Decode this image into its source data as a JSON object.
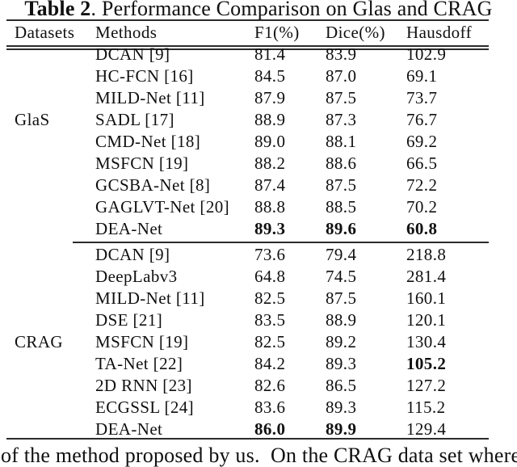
{
  "page": {
    "caption_bold": "Table 2",
    "caption_rest": ". Performance Comparison on Glas and CRAG",
    "footer_text": "of the method proposed by us.  On the CRAG data set where"
  },
  "table": {
    "columns": [
      "Datasets",
      "Methods",
      "F1(%)",
      "Dice(%)",
      "Hausdoff"
    ],
    "sections": [
      {
        "dataset": "GlaS",
        "dataset_row": 3,
        "rows": [
          {
            "method": "DCAN [9]",
            "f1": "81.4",
            "dice": "83.9",
            "hausdoff": "102.9",
            "bold": []
          },
          {
            "method": "HC-FCN [16]",
            "f1": "84.5",
            "dice": "87.0",
            "hausdoff": "69.1",
            "bold": []
          },
          {
            "method": "MILD-Net [11]",
            "f1": "87.9",
            "dice": "87.5",
            "hausdoff": "73.7",
            "bold": []
          },
          {
            "method": "SADL [17]",
            "f1": "88.9",
            "dice": "87.3",
            "hausdoff": "76.7",
            "bold": []
          },
          {
            "method": "CMD-Net [18]",
            "f1": "89.0",
            "dice": "88.1",
            "hausdoff": "69.2",
            "bold": []
          },
          {
            "method": "MSFCN [19]",
            "f1": "88.2",
            "dice": "88.6",
            "hausdoff": "66.5",
            "bold": []
          },
          {
            "method": "GCSBA-Net [8]",
            "f1": "87.4",
            "dice": "87.5",
            "hausdoff": "72.2",
            "bold": []
          },
          {
            "method": "GAGLVT-Net [20]",
            "f1": "88.8",
            "dice": "88.5",
            "hausdoff": "70.2",
            "bold": []
          },
          {
            "method": "DEA-Net",
            "f1": "89.3",
            "dice": "89.6",
            "hausdoff": "60.8",
            "bold": [
              "f1",
              "dice",
              "hausdoff"
            ]
          }
        ]
      },
      {
        "dataset": "CRAG",
        "dataset_row": 4,
        "rows": [
          {
            "method": "DCAN [9]",
            "f1": "73.6",
            "dice": "79.4",
            "hausdoff": "218.8",
            "bold": []
          },
          {
            "method": "DeepLabv3",
            "f1": "64.8",
            "dice": "74.5",
            "hausdoff": "281.4",
            "bold": []
          },
          {
            "method": "MILD-Net [11]",
            "f1": "82.5",
            "dice": "87.5",
            "hausdoff": "160.1",
            "bold": []
          },
          {
            "method": "DSE [21]",
            "f1": "83.5",
            "dice": "88.9",
            "hausdoff": "120.1",
            "bold": []
          },
          {
            "method": "MSFCN [19]",
            "f1": "82.5",
            "dice": "89.2",
            "hausdoff": "130.4",
            "bold": []
          },
          {
            "method": "TA-Net [22]",
            "f1": "84.2",
            "dice": "89.3",
            "hausdoff": "105.2",
            "bold": [
              "hausdoff"
            ]
          },
          {
            "method": "2D RNN [23]",
            "f1": "82.6",
            "dice": "86.5",
            "hausdoff": "127.2",
            "bold": []
          },
          {
            "method": "ECGSSL [24]",
            "f1": "83.6",
            "dice": "89.3",
            "hausdoff": "115.2",
            "bold": []
          },
          {
            "method": "DEA-Net",
            "f1": "86.0",
            "dice": "89.9",
            "hausdoff": "129.4",
            "bold": [
              "f1",
              "dice"
            ]
          }
        ]
      }
    ]
  }
}
